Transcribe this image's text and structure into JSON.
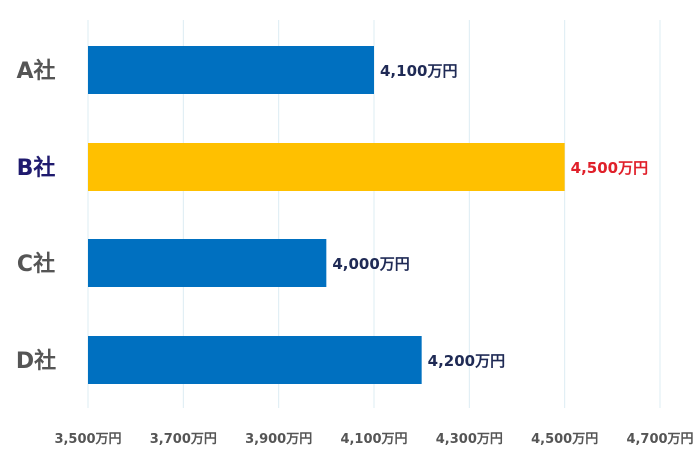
{
  "chart_data": {
    "type": "bar",
    "orientation": "horizontal",
    "categories": [
      "A社",
      "B社",
      "C社",
      "D社"
    ],
    "values": [
      4100,
      4500,
      4000,
      4200
    ],
    "value_labels": [
      "4,100万円",
      "4,500万円",
      "4,000万円",
      "4,200万円"
    ],
    "highlight_index": 1,
    "xlim": [
      3500,
      4700
    ],
    "xticks": [
      3500,
      3700,
      3900,
      4100,
      4300,
      4500,
      4700
    ],
    "xtick_labels": [
      "3,500万円",
      "3,700万円",
      "3,900万円",
      "4,100万円",
      "4,300万円",
      "4,500万円",
      "4,700万円"
    ],
    "grid": true,
    "title": "",
    "xlabel": "",
    "ylabel": ""
  },
  "colors": {
    "bar": "#0070c0",
    "highlight_bar": "#ffc000",
    "highlight_category_text": "#1f1a6e",
    "highlight_value_text": "#e0202a"
  }
}
